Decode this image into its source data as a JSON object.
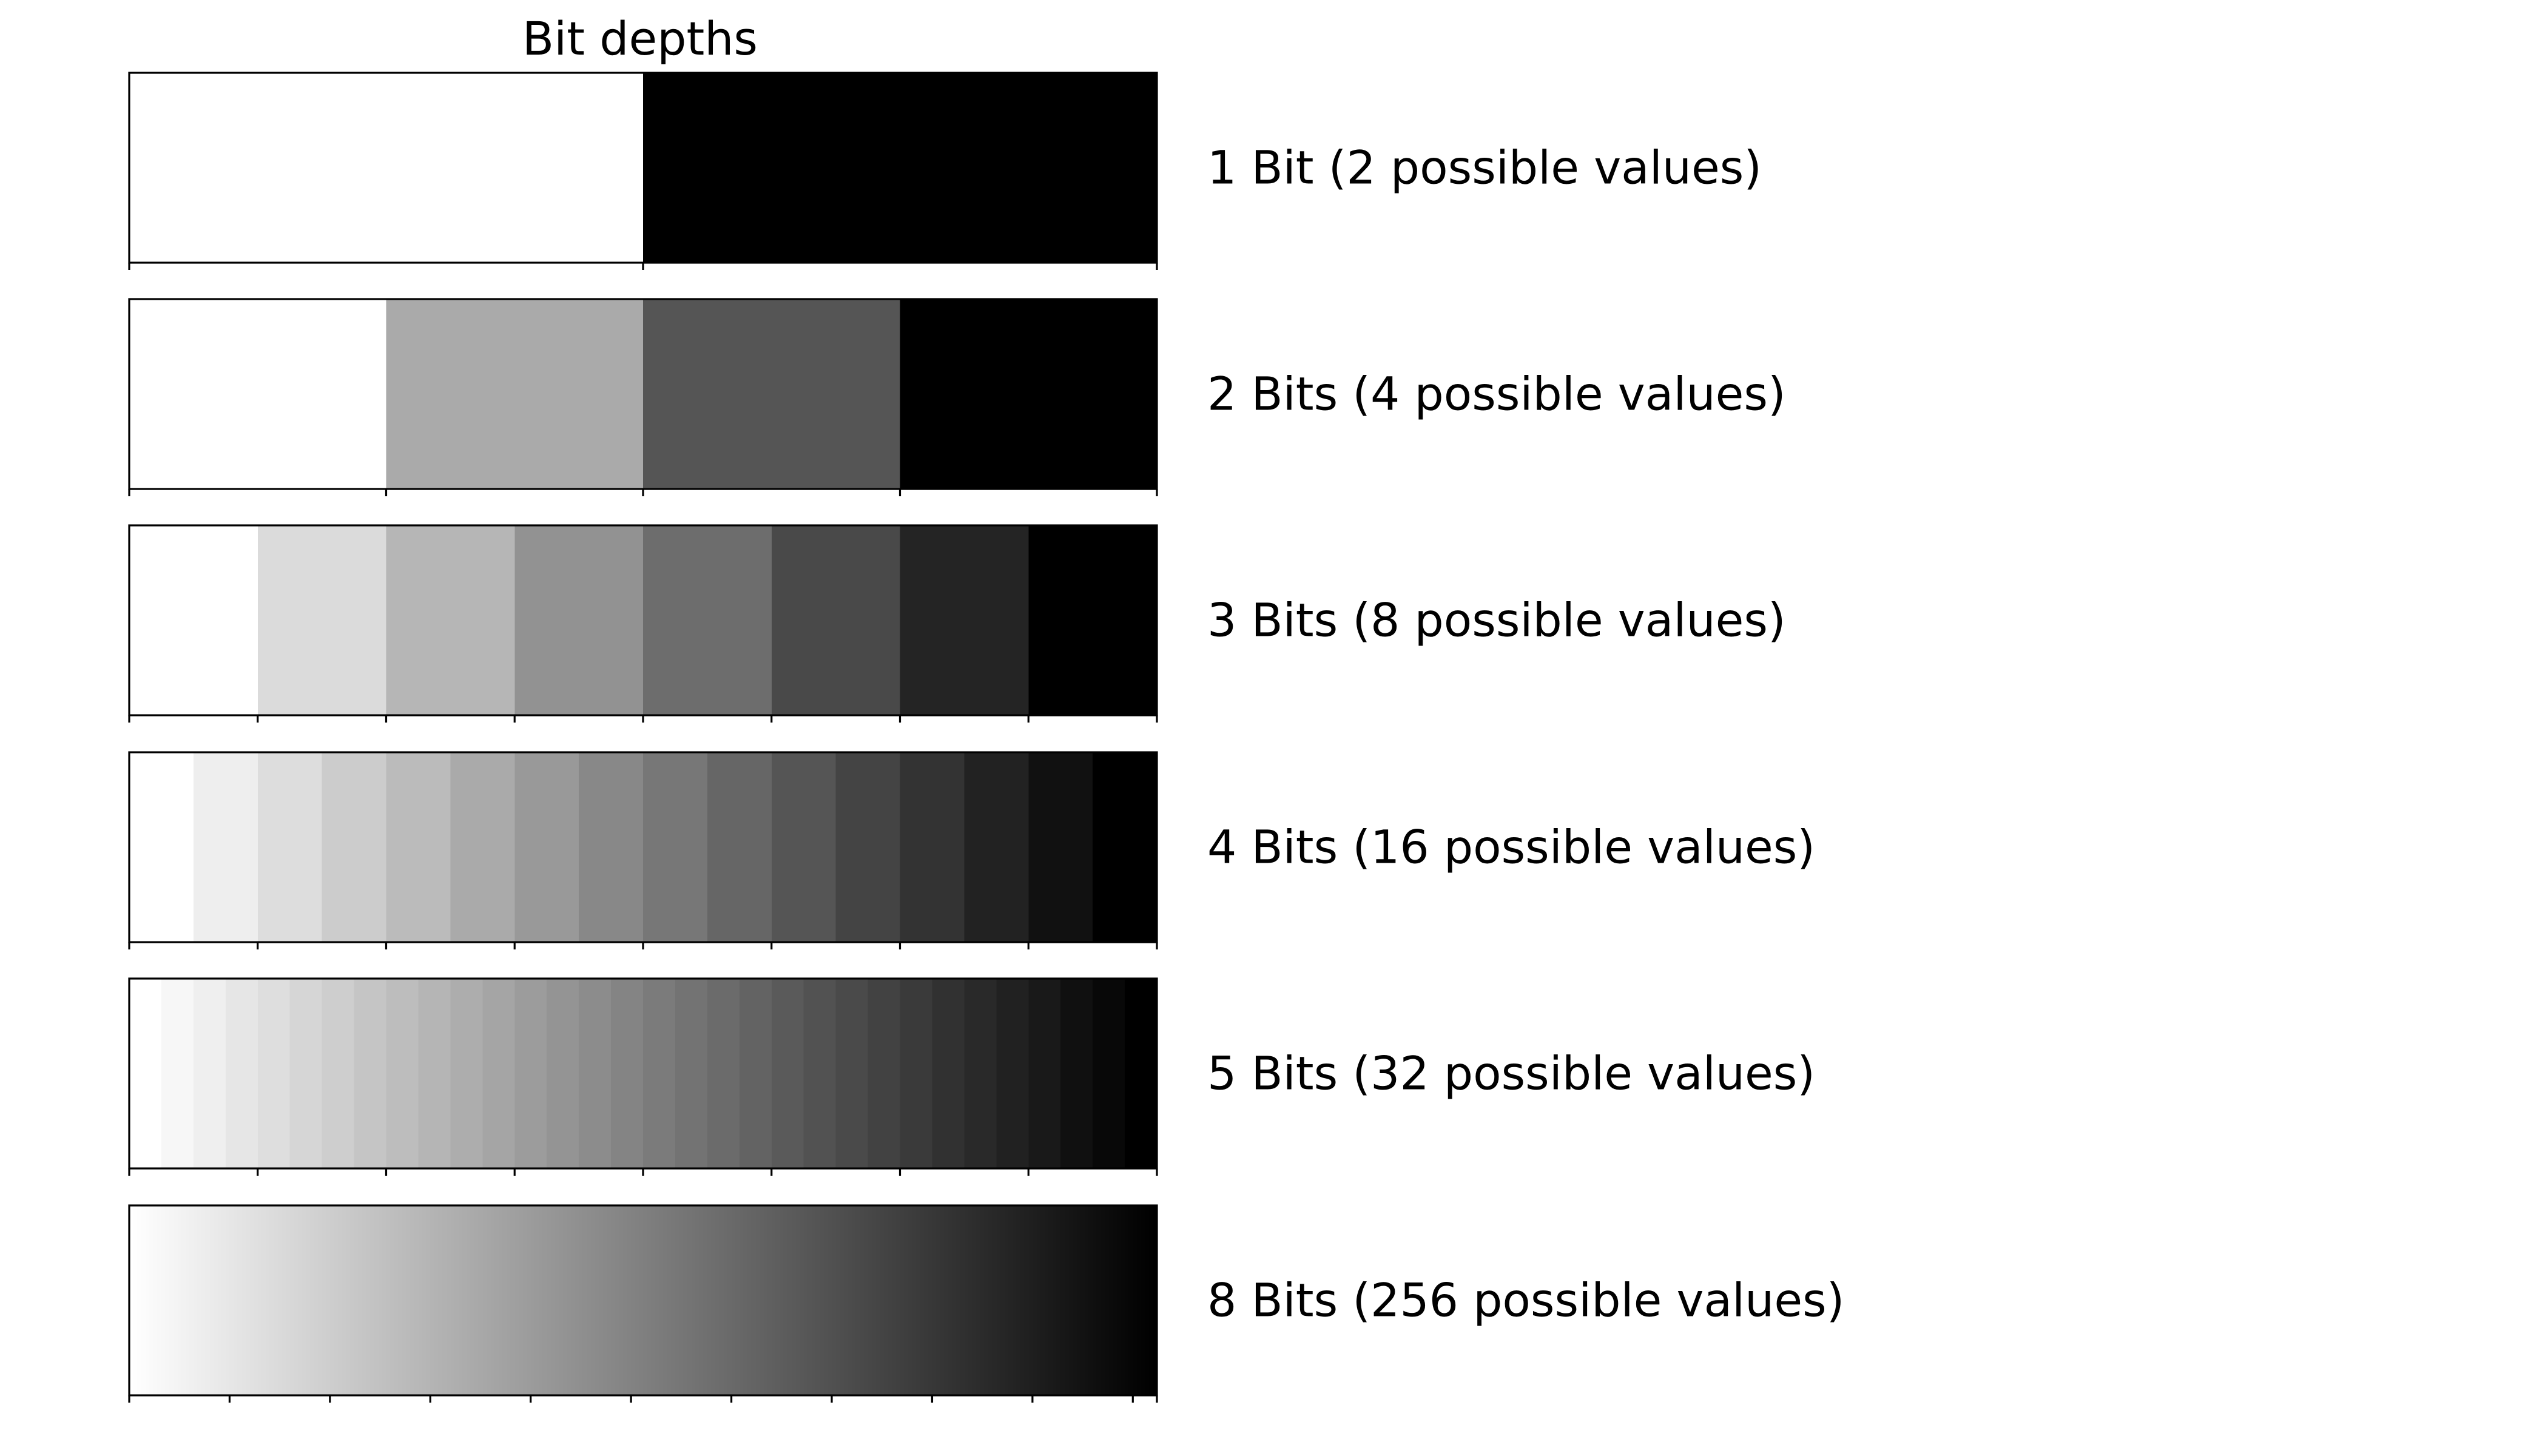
{
  "chart_data": {
    "type": "heatmap",
    "title": "Bit depths",
    "colormap": "grayscale, white (lowest) to black (highest)",
    "grid": false,
    "legend": "none",
    "rows": [
      {
        "label": "1 Bit (2 possible values)",
        "bits": 1,
        "levels": 2
      },
      {
        "label": "2 Bits (4 possible values)",
        "bits": 2,
        "levels": 4
      },
      {
        "label": "3 Bits (8 possible values)",
        "bits": 3,
        "levels": 8
      },
      {
        "label": "4 Bits (16 possible values)",
        "bits": 4,
        "levels": 16
      },
      {
        "label": "5 Bits (32 possible values)",
        "bits": 5,
        "levels": 32
      },
      {
        "label": "8 Bits (256 possible values)",
        "bits": 8,
        "levels": 256
      }
    ]
  }
}
